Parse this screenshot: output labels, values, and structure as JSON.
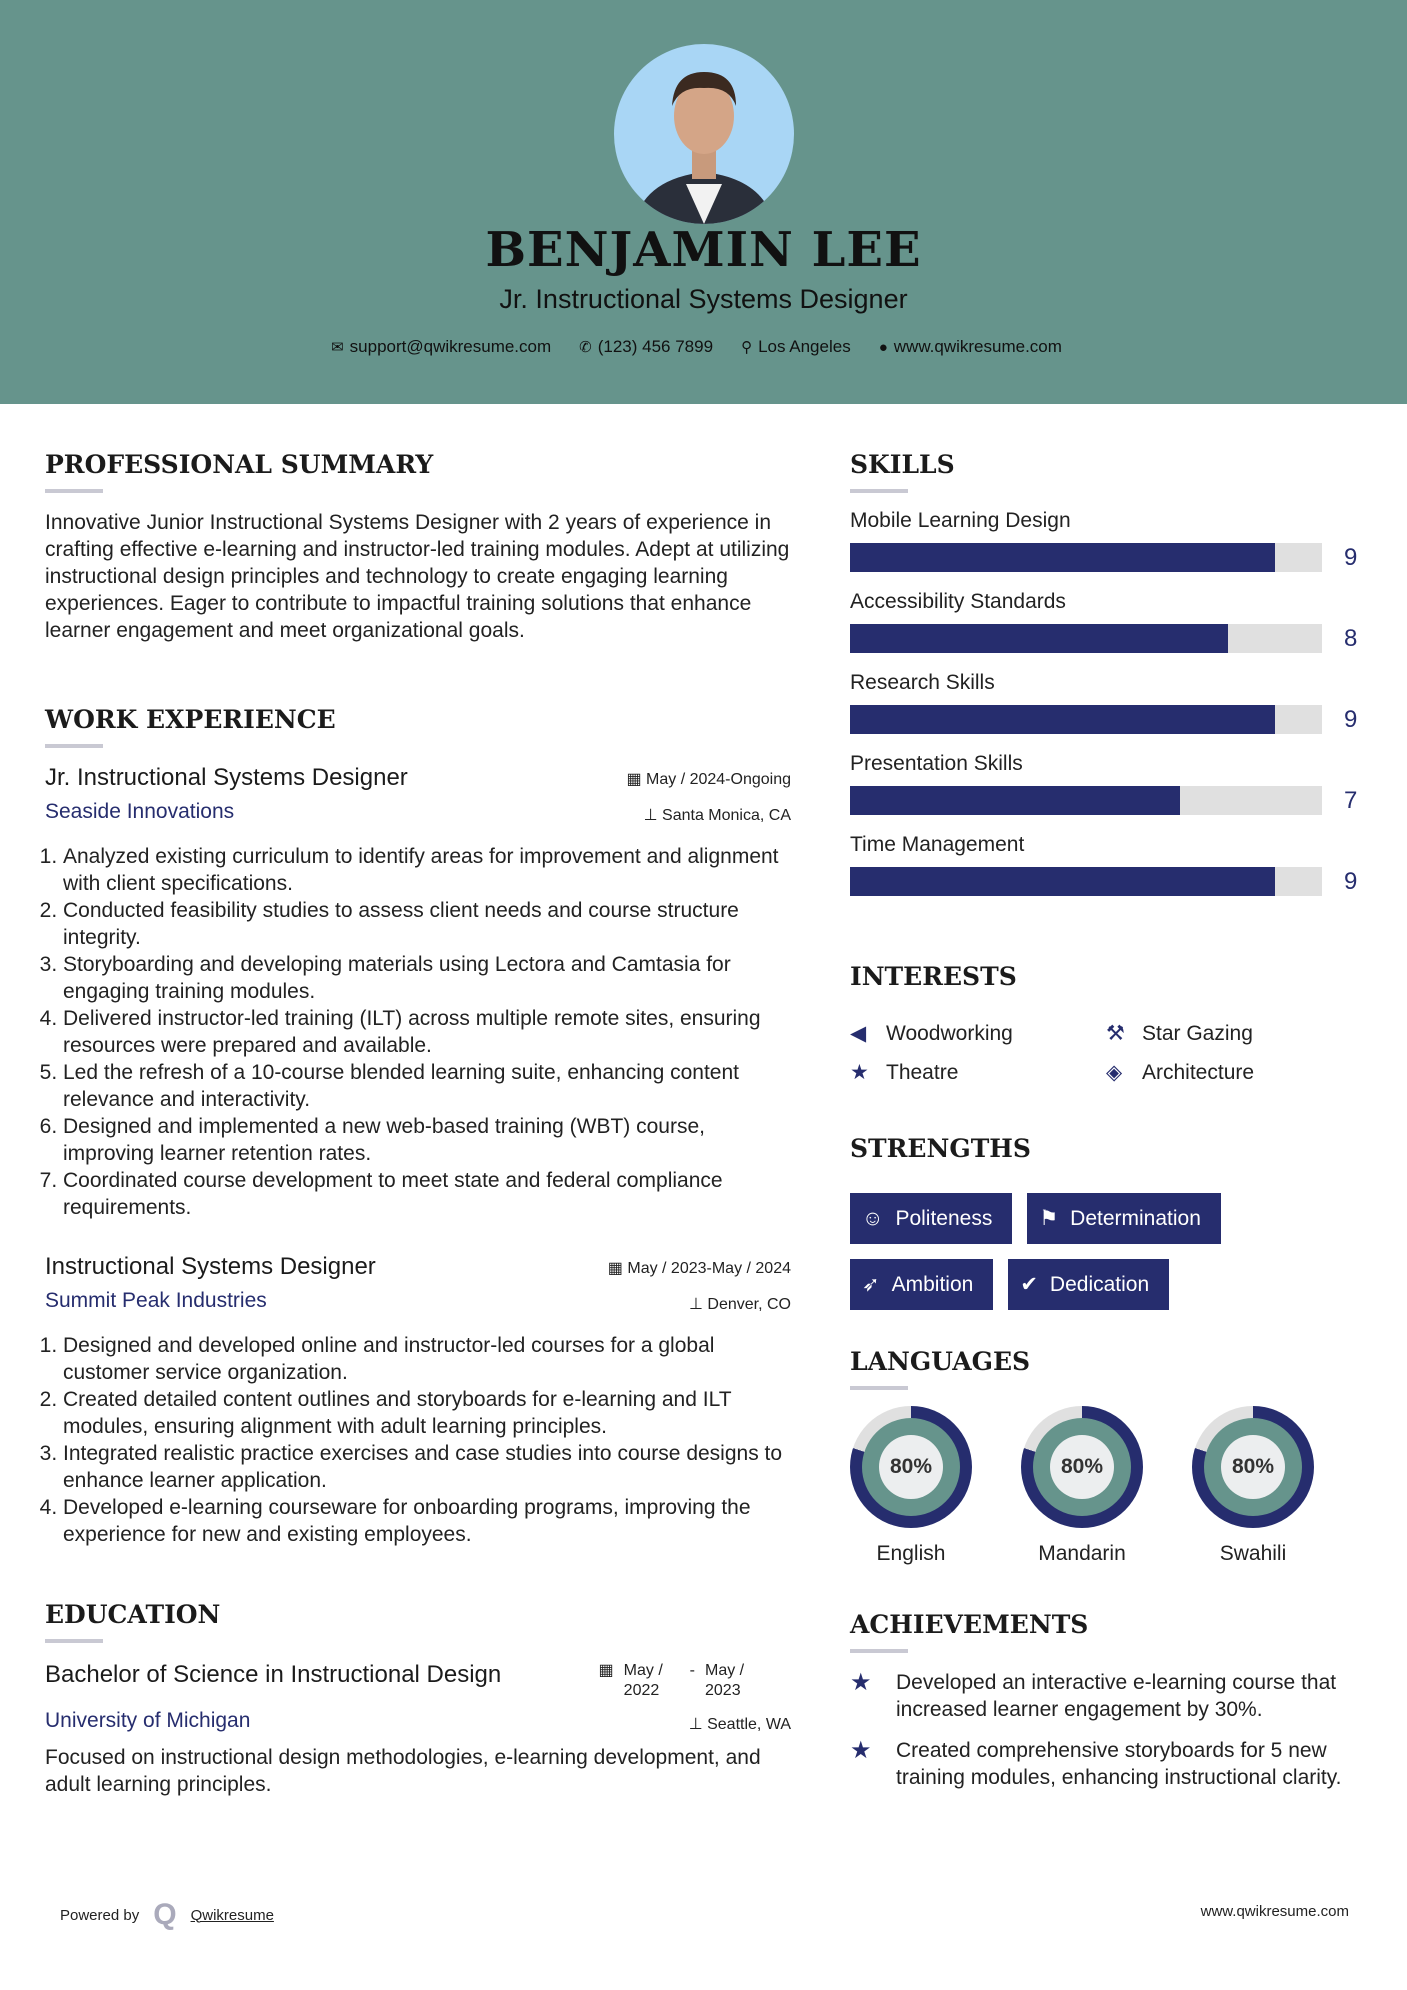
{
  "header": {
    "name": "BENJAMIN LEE",
    "title": "Jr. Instructional Systems Designer",
    "contact": {
      "email": "support@qwikresume.com",
      "phone": "(123) 456 7899",
      "location": "Los Angeles",
      "website": "www.qwikresume.com"
    }
  },
  "summary": {
    "heading": "PROFESSIONAL SUMMARY",
    "text": "Innovative Junior Instructional Systems Designer with 2 years of experience in crafting effective e-learning and instructor-led training modules. Adept at utilizing instructional design principles and technology to create engaging learning experiences. Eager to contribute to impactful training solutions that enhance learner engagement and meet organizational goals."
  },
  "work": {
    "heading": "WORK EXPERIENCE",
    "jobs": [
      {
        "title": "Jr. Instructional Systems Designer",
        "company": "Seaside Innovations",
        "dates": "May / 2024-Ongoing",
        "location": "Santa Monica, CA",
        "bullets": [
          "Analyzed existing curriculum to identify areas for improvement and alignment with client specifications.",
          "Conducted feasibility studies to assess client needs and course structure integrity.",
          "Storyboarding and developing materials using Lectora and Camtasia for engaging training modules.",
          "Delivered instructor-led training (ILT) across multiple remote sites, ensuring resources were prepared and available.",
          "Led the refresh of a 10-course blended learning suite, enhancing content relevance and interactivity.",
          "Designed and implemented a new web-based training (WBT) course, improving learner retention rates.",
          "Coordinated course development to meet state and federal compliance requirements."
        ]
      },
      {
        "title": "Instructional Systems Designer",
        "company": "Summit Peak Industries",
        "dates": "May / 2023-May / 2024",
        "location": "Denver, CO",
        "bullets": [
          "Designed and developed online and instructor-led courses for a global customer service organization.",
          "Created detailed content outlines and storyboards for e-learning and ILT modules, ensuring alignment with adult learning principles.",
          "Integrated realistic practice exercises and case studies into course designs to enhance learner application.",
          "Developed e-learning courseware for onboarding programs, improving the experience for new and existing employees."
        ]
      }
    ]
  },
  "education": {
    "heading": "EDUCATION",
    "degree": "Bachelor of Science in Instructional Design",
    "school": "University of Michigan",
    "start": "May / 2022",
    "end": "May / 2023",
    "separator": "-",
    "location": "Seattle, WA",
    "description": "Focused on instructional design methodologies, e-learning development, and adult learning principles."
  },
  "skills": {
    "heading": "SKILLS",
    "max": 10,
    "items": [
      {
        "name": "Mobile Learning Design",
        "level": 9
      },
      {
        "name": "Accessibility Standards",
        "level": 8
      },
      {
        "name": "Research Skills",
        "level": 9
      },
      {
        "name": "Presentation Skills",
        "level": 7
      },
      {
        "name": "Time Management",
        "level": 9
      }
    ]
  },
  "interests": {
    "heading": "INTERESTS",
    "items": [
      {
        "label": "Woodworking",
        "icon": "bullhorn-icon"
      },
      {
        "label": "Star Gazing",
        "icon": "gavel-icon"
      },
      {
        "label": "Theatre",
        "icon": "star-icon"
      },
      {
        "label": "Architecture",
        "icon": "ruler-icon"
      }
    ]
  },
  "strengths": {
    "heading": "STRENGTHS",
    "items": [
      {
        "label": "Politeness",
        "icon": "smile-icon"
      },
      {
        "label": "Determination",
        "icon": "flag-icon"
      },
      {
        "label": "Ambition",
        "icon": "rocket-icon"
      },
      {
        "label": "Dedication",
        "icon": "check-circle-icon"
      }
    ]
  },
  "languages": {
    "heading": "LANGUAGES",
    "items": [
      {
        "name": "English",
        "percent": 80,
        "label": "80%"
      },
      {
        "name": "Mandarin",
        "percent": 80,
        "label": "80%"
      },
      {
        "name": "Swahili",
        "percent": 80,
        "label": "80%"
      }
    ]
  },
  "achievements": {
    "heading": "ACHIEVEMENTS",
    "items": [
      "Developed an interactive e-learning course that increased learner engagement by 30%.",
      "Created comprehensive storyboards for 5 new training modules, enhancing instructional clarity."
    ]
  },
  "footer": {
    "powered_by": "Powered by",
    "brand": "Qwikresume",
    "website": "www.qwikresume.com"
  },
  "colors": {
    "header": "#66948c",
    "accent": "#262d6e",
    "track": "#e0e0e0"
  }
}
